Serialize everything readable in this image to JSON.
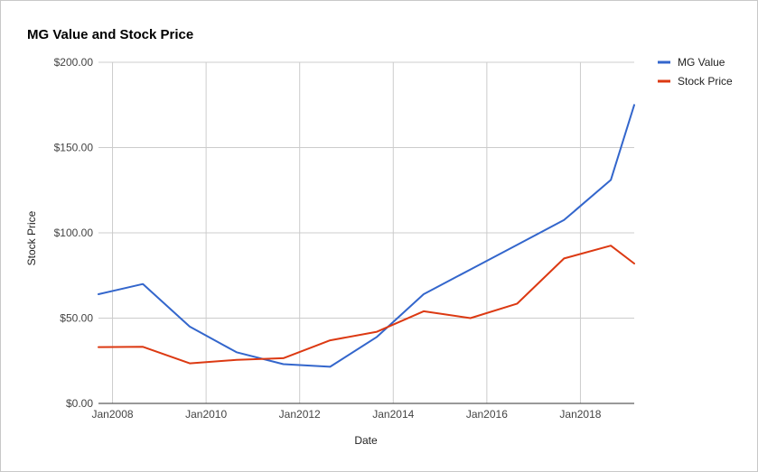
{
  "chart_data": {
    "type": "line",
    "title": "MG Value and Stock Price",
    "xlabel": "Date",
    "ylabel": "Stock Price",
    "x_tick_labels": [
      "Jan2008",
      "Jan2010",
      "Jan2012",
      "Jan2014",
      "Jan2016",
      "Jan2018"
    ],
    "y_tick_labels": [
      "$0.00",
      "$50.00",
      "$100.00",
      "$150.00",
      "$200.00"
    ],
    "x_ticks": [
      2008,
      2010,
      2012,
      2014,
      2016,
      2018
    ],
    "y_ticks": [
      0,
      50,
      100,
      150,
      200
    ],
    "xlim": [
      2007.7,
      2019.15
    ],
    "ylim": [
      0,
      200
    ],
    "grid": true,
    "legend_position": "right",
    "series": [
      {
        "name": "MG Value",
        "color": "#3366cc",
        "x": [
          2007.7,
          2008.65,
          2009.65,
          2010.65,
          2011.65,
          2012.65,
          2013.65,
          2014.65,
          2015.65,
          2016.65,
          2017.65,
          2018.65,
          2019.15
        ],
        "y": [
          64,
          70,
          45,
          30,
          23,
          21.5,
          39,
          64,
          78.5,
          93,
          107.5,
          131,
          175
        ]
      },
      {
        "name": "Stock Price",
        "color": "#dc3912",
        "x": [
          2007.7,
          2008.65,
          2009.65,
          2010.65,
          2011.65,
          2012.65,
          2013.65,
          2014.65,
          2015.65,
          2016.65,
          2017.65,
          2018.65,
          2019.15
        ],
        "y": [
          33,
          33.2,
          23.5,
          25.5,
          26.5,
          37,
          42,
          54,
          50,
          58.5,
          85,
          92.5,
          82
        ]
      }
    ]
  }
}
